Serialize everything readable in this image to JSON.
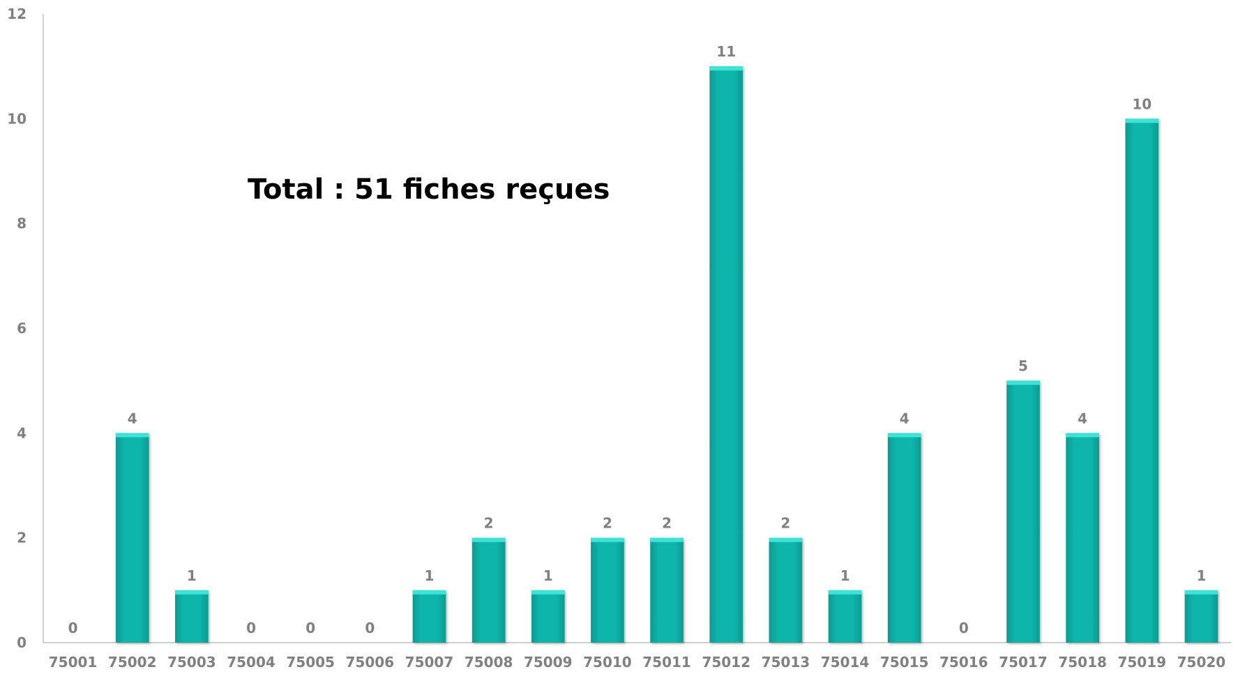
{
  "chart_data": {
    "type": "bar",
    "categories": [
      "75001",
      "75002",
      "75003",
      "75004",
      "75005",
      "75006",
      "75007",
      "75008",
      "75009",
      "75010",
      "75011",
      "75012",
      "75013",
      "75014",
      "75015",
      "75016",
      "75017",
      "75018",
      "75019",
      "75020"
    ],
    "values": [
      0,
      4,
      1,
      0,
      0,
      0,
      1,
      2,
      1,
      2,
      2,
      11,
      2,
      1,
      4,
      0,
      5,
      4,
      10,
      1
    ],
    "ylim": [
      0,
      12
    ],
    "yticks": [
      "0",
      "2",
      "4",
      "6",
      "8",
      "10",
      "12"
    ],
    "annotation": "Total : 51 fiches reçues",
    "title": "",
    "xlabel": "",
    "ylabel": "",
    "grid": false,
    "bar_color": "#0fb2a8",
    "bar_top_color": "#3fe3d6",
    "data_labels": true
  }
}
